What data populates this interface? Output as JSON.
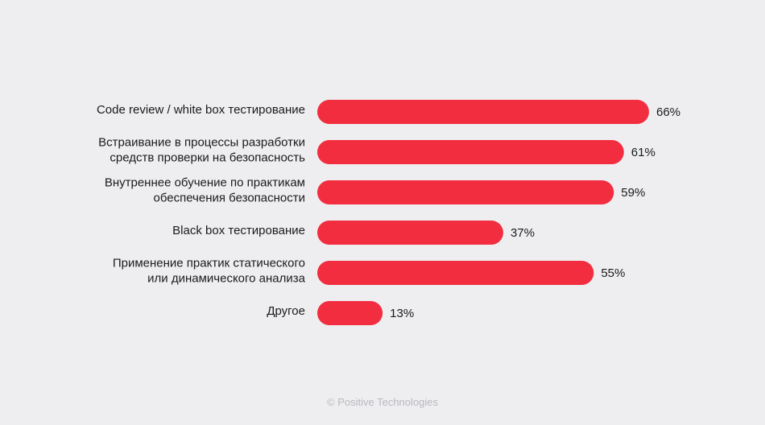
{
  "chart_data": {
    "type": "bar",
    "orientation": "horizontal",
    "categories": [
      [
        "Code review / white box тестирование"
      ],
      [
        "Встраивание в процессы разработки",
        "средств проверки на безопасность"
      ],
      [
        "Внутреннее обучение по практикам",
        "обеспечения безопасности"
      ],
      [
        "Black box тестирование"
      ],
      [
        "Применение практик статического",
        "или динамического анализа"
      ],
      [
        "Другое"
      ]
    ],
    "values": [
      66,
      61,
      59,
      37,
      55,
      13
    ],
    "value_labels": [
      "66%",
      "61%",
      "59%",
      "37%",
      "55%",
      "13%"
    ],
    "unit": "%",
    "xlim": [
      0,
      100
    ],
    "grid": false,
    "legend": "none",
    "bar_color": "#f22d3f"
  },
  "footer": {
    "copyright": "© Positive Technologies"
  }
}
